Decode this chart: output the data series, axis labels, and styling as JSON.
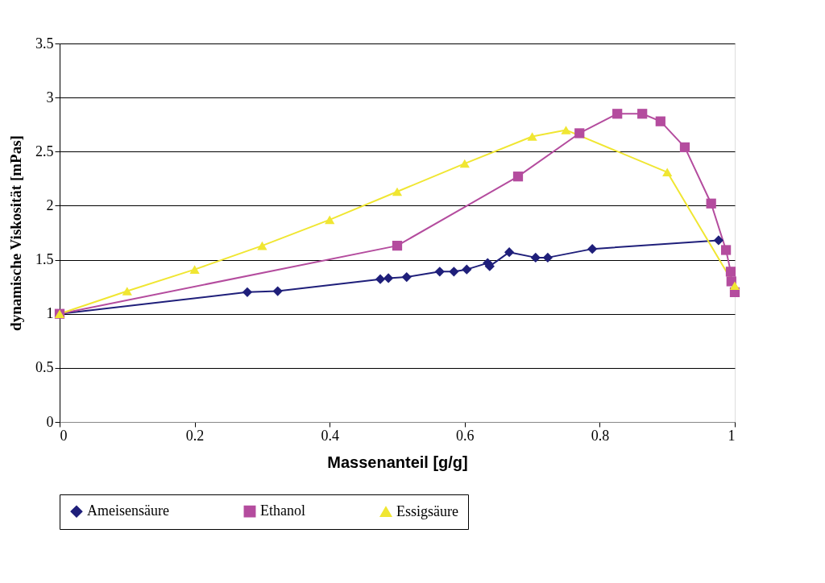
{
  "chart_data": {
    "type": "line",
    "xlabel": "Massenanteil [g/g]",
    "ylabel": "dynamische Viskosität [mPas]",
    "xlim": [
      0,
      1
    ],
    "xticks": [
      0,
      0.2,
      0.4,
      0.6,
      0.8,
      1
    ],
    "ylim": [
      0,
      3.5
    ],
    "yticks": [
      0,
      0.5,
      1,
      1.5,
      2,
      2.5,
      3,
      3.5
    ],
    "grid": "y",
    "legend": "bottom",
    "line_style": "solid",
    "series": [
      {
        "name": "Ameisensäure",
        "color": "#1f1f7a",
        "marker": "diamond",
        "x": [
          0,
          0.278,
          0.323,
          0.475,
          0.487,
          0.514,
          0.563,
          0.584,
          0.603,
          0.634,
          0.637,
          0.666,
          0.705,
          0.723,
          0.789,
          0.976
        ],
        "values": [
          1.0,
          1.2,
          1.21,
          1.32,
          1.33,
          1.34,
          1.39,
          1.39,
          1.41,
          1.47,
          1.44,
          1.57,
          1.52,
          1.52,
          1.6,
          1.68
        ]
      },
      {
        "name": "Ethanol",
        "color": "#b44c9e",
        "marker": "square",
        "x": [
          0,
          0.5,
          0.679,
          0.77,
          0.826,
          0.863,
          0.89,
          0.926,
          0.965,
          0.987,
          0.994,
          0.995,
          1.0
        ],
        "values": [
          1.0,
          1.63,
          2.27,
          2.67,
          2.85,
          2.85,
          2.78,
          2.54,
          2.02,
          1.59,
          1.39,
          1.3,
          1.2
        ]
      },
      {
        "name": "Essigsäure",
        "color": "#f0e632",
        "marker": "triangle",
        "x": [
          0,
          0.1,
          0.2,
          0.3,
          0.4,
          0.5,
          0.6,
          0.7,
          0.75,
          0.9,
          1.0
        ],
        "values": [
          1.0,
          1.21,
          1.41,
          1.63,
          1.87,
          2.13,
          2.39,
          2.64,
          2.7,
          2.31,
          1.26
        ]
      }
    ]
  }
}
